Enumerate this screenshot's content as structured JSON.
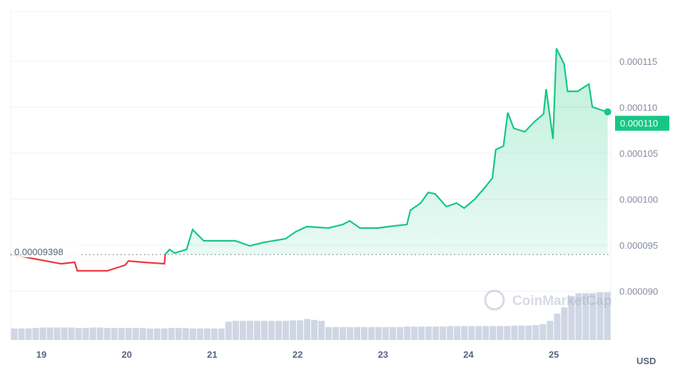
{
  "chart_data": {
    "type": "line",
    "title": "",
    "currency_label": "USD",
    "watermark": "CoinMarketCap",
    "reference_price": 9.398e-05,
    "reference_label": "0.00009398",
    "current_price_label": "0.000110",
    "y_ticks": [
      9e-05,
      9.5e-05,
      0.0001,
      0.000105,
      0.00011,
      0.000115
    ],
    "y_tick_labels": [
      "0.000090",
      "0.000095",
      "0.000100",
      "0.000105",
      "0.000110",
      "0.000115"
    ],
    "x_ticks": [
      19,
      20,
      21,
      22,
      23,
      24,
      25
    ],
    "x_tick_labels": [
      "19",
      "20",
      "21",
      "22",
      "23",
      "24",
      "25"
    ],
    "xlim": [
      18.64,
      25.66
    ],
    "ylim": [
      8.85e-05,
      0.0001204
    ],
    "grid": true,
    "colors": {
      "up": "#16c784",
      "down": "#ea3943",
      "volume": "#cfd6e4"
    },
    "series": [
      {
        "name": "price",
        "x": [
          18.64,
          19.23,
          19.39,
          19.42,
          19.6,
          19.77,
          19.98,
          20.02,
          20.19,
          20.44,
          20.45,
          20.5,
          20.56,
          20.7,
          20.77,
          20.9,
          21.02,
          21.27,
          21.44,
          21.61,
          21.86,
          21.98,
          22.11,
          22.36,
          22.53,
          22.61,
          22.73,
          22.94,
          23.07,
          23.28,
          23.32,
          23.44,
          23.53,
          23.61,
          23.74,
          23.86,
          23.95,
          24.07,
          24.2,
          24.28,
          24.32,
          24.41,
          24.46,
          24.53,
          24.66,
          24.78,
          24.88,
          24.91,
          24.95,
          24.99,
          25.03,
          25.12,
          25.16,
          25.28,
          25.41,
          25.45,
          25.57,
          25.63
        ],
        "y": [
          9.399e-05,
          9.298e-05,
          9.314e-05,
          9.221e-05,
          9.221e-05,
          9.221e-05,
          9.283e-05,
          9.329e-05,
          9.314e-05,
          9.298e-05,
          9.399e-05,
          9.453e-05,
          9.415e-05,
          9.453e-05,
          9.67e-05,
          9.547e-05,
          9.547e-05,
          9.547e-05,
          9.492e-05,
          9.531e-05,
          9.57e-05,
          9.647e-05,
          9.702e-05,
          9.686e-05,
          9.725e-05,
          9.764e-05,
          9.686e-05,
          9.686e-05,
          9.702e-05,
          9.725e-05,
          9.88e-05,
          9.957e-05,
          0.00010074,
          0.00010058,
          9.919e-05,
          9.957e-05,
          9.903e-05,
          9.996e-05,
          0.00010136,
          0.00010229,
          0.00010539,
          0.00010578,
          0.00010942,
          0.00010771,
          0.00010733,
          0.00010849,
          0.00010926,
          0.00011198,
          0.00010926,
          0.00010655,
          0.0001164,
          0.00011469,
          0.00011174,
          0.00011174,
          0.00011252,
          0.00011004,
          0.00010965,
          0.0001095
        ]
      }
    ],
    "volume_relative": [
      24,
      24,
      24,
      25,
      26,
      26,
      26,
      26,
      26,
      25,
      25,
      26,
      26,
      25,
      25,
      25,
      25,
      25,
      25,
      24,
      24,
      24,
      25,
      25,
      25,
      24,
      24,
      24,
      24,
      24,
      38,
      40,
      40,
      40,
      40,
      40,
      40,
      40,
      40,
      41,
      41,
      44,
      42,
      40,
      27,
      27,
      27,
      27,
      27,
      27,
      27,
      27,
      27,
      27,
      27,
      28,
      28,
      28,
      28,
      28,
      28,
      29,
      29,
      29,
      29,
      29,
      29,
      29,
      29,
      29,
      30,
      30,
      30,
      31,
      33,
      40,
      55,
      68,
      92,
      98,
      98,
      98,
      100,
      100
    ]
  }
}
